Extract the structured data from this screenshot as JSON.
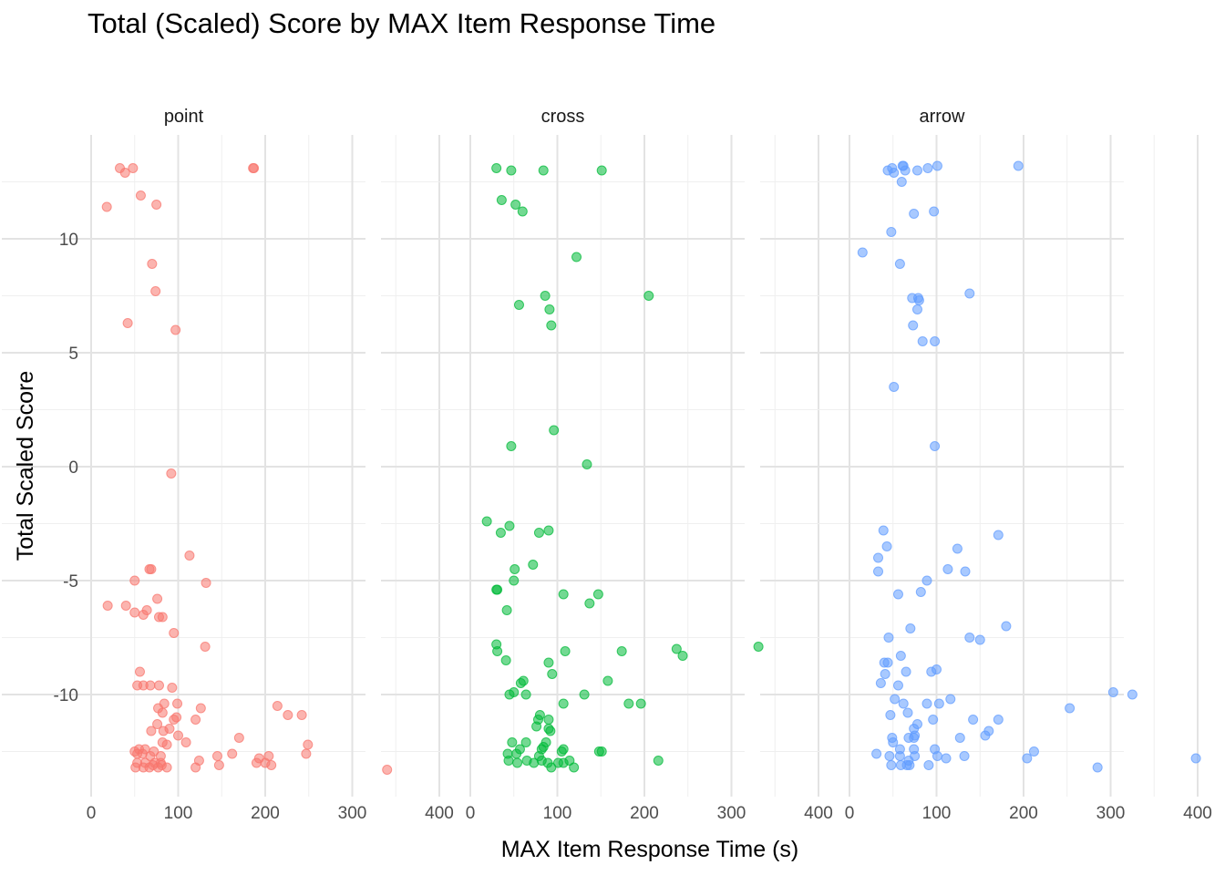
{
  "chart_data": {
    "type": "scatter",
    "title": "Total (Scaled) Score by MAX Item Response Time",
    "xlabel": "MAX Item Response Time (s)",
    "ylabel": "Total Scaled Score",
    "xlim": [
      0,
      400
    ],
    "ylim": [
      -14.5,
      14.5
    ],
    "x_ticks": [
      0,
      100,
      200,
      300,
      400
    ],
    "y_ticks": [
      -10,
      -5,
      0,
      5,
      10
    ],
    "grid": true,
    "legend": "none",
    "point_alpha": 0.55,
    "panels": [
      {
        "name": "point",
        "color": "#F8766D",
        "points": [
          [
            33,
            13.1
          ],
          [
            48,
            13.1
          ],
          [
            39,
            12.9
          ],
          [
            186,
            13.1
          ],
          [
            187,
            13.1
          ],
          [
            57,
            11.9
          ],
          [
            18,
            11.4
          ],
          [
            75,
            11.5
          ],
          [
            70,
            8.9
          ],
          [
            74,
            7.7
          ],
          [
            42,
            6.3
          ],
          [
            97,
            6.0
          ],
          [
            92,
            -0.3
          ],
          [
            113,
            -3.9
          ],
          [
            67,
            -4.5
          ],
          [
            69,
            -4.5
          ],
          [
            50,
            -5.0
          ],
          [
            132,
            -5.1
          ],
          [
            19,
            -6.1
          ],
          [
            40,
            -6.1
          ],
          [
            76,
            -5.8
          ],
          [
            50,
            -6.4
          ],
          [
            60,
            -6.5
          ],
          [
            64,
            -6.3
          ],
          [
            78,
            -6.6
          ],
          [
            82,
            -6.6
          ],
          [
            95,
            -7.3
          ],
          [
            131,
            -7.9
          ],
          [
            56,
            -9.0
          ],
          [
            53,
            -9.6
          ],
          [
            60,
            -9.6
          ],
          [
            68,
            -9.6
          ],
          [
            78,
            -9.6
          ],
          [
            93,
            -9.7
          ],
          [
            99,
            -10.4
          ],
          [
            84,
            -10.4
          ],
          [
            77,
            -10.6
          ],
          [
            126,
            -10.6
          ],
          [
            214,
            -10.5
          ],
          [
            242,
            -10.9
          ],
          [
            226,
            -10.9
          ],
          [
            82,
            -10.8
          ],
          [
            98,
            -11.0
          ],
          [
            95,
            -11.1
          ],
          [
            120,
            -11.1
          ],
          [
            76,
            -11.3
          ],
          [
            90,
            -11.5
          ],
          [
            69,
            -11.6
          ],
          [
            83,
            -11.6
          ],
          [
            100,
            -11.8
          ],
          [
            170,
            -11.9
          ],
          [
            109,
            -12.1
          ],
          [
            82,
            -12.1
          ],
          [
            87,
            -12.2
          ],
          [
            249,
            -12.2
          ],
          [
            50,
            -12.5
          ],
          [
            55,
            -12.4
          ],
          [
            62,
            -12.4
          ],
          [
            72,
            -12.5
          ],
          [
            53,
            -12.6
          ],
          [
            59,
            -12.6
          ],
          [
            80,
            -12.7
          ],
          [
            68,
            -12.7
          ],
          [
            162,
            -12.6
          ],
          [
            247,
            -12.6
          ],
          [
            145,
            -12.7
          ],
          [
            193,
            -12.8
          ],
          [
            204,
            -12.7
          ],
          [
            124,
            -12.9
          ],
          [
            190,
            -13.0
          ],
          [
            53,
            -13.0
          ],
          [
            62,
            -13.0
          ],
          [
            73,
            -13.0
          ],
          [
            80,
            -13.0
          ],
          [
            71,
            -13.1
          ],
          [
            81,
            -13.1
          ],
          [
            200,
            -13.0
          ],
          [
            87,
            -13.2
          ],
          [
            51,
            -13.2
          ],
          [
            60,
            -13.2
          ],
          [
            67,
            -13.2
          ],
          [
            77,
            -13.2
          ],
          [
            120,
            -13.2
          ],
          [
            147,
            -13.1
          ],
          [
            207,
            -13.1
          ],
          [
            340,
            -13.3
          ]
        ]
      },
      {
        "name": "cross",
        "color": "#00BA38",
        "points": [
          [
            30,
            13.1
          ],
          [
            47,
            13.0
          ],
          [
            84,
            13.0
          ],
          [
            151,
            13.0
          ],
          [
            36,
            11.7
          ],
          [
            52,
            11.5
          ],
          [
            60,
            11.2
          ],
          [
            122,
            9.2
          ],
          [
            86,
            7.5
          ],
          [
            205,
            7.5
          ],
          [
            56,
            7.1
          ],
          [
            91,
            6.9
          ],
          [
            93,
            6.2
          ],
          [
            96,
            1.6
          ],
          [
            47,
            0.9
          ],
          [
            134,
            0.1
          ],
          [
            19,
            -2.4
          ],
          [
            45,
            -2.6
          ],
          [
            90,
            -2.8
          ],
          [
            79,
            -2.9
          ],
          [
            35,
            -2.9
          ],
          [
            72,
            -4.3
          ],
          [
            51,
            -4.5
          ],
          [
            50,
            -5.0
          ],
          [
            30,
            -5.4
          ],
          [
            31,
            -5.4
          ],
          [
            107,
            -5.6
          ],
          [
            147,
            -5.6
          ],
          [
            137,
            -6.0
          ],
          [
            42,
            -6.3
          ],
          [
            30,
            -7.8
          ],
          [
            31,
            -8.1
          ],
          [
            109,
            -8.1
          ],
          [
            174,
            -8.1
          ],
          [
            237,
            -8.0
          ],
          [
            244,
            -8.3
          ],
          [
            331,
            -7.9
          ],
          [
            41,
            -8.5
          ],
          [
            90,
            -8.6
          ],
          [
            94,
            -9.1
          ],
          [
            158,
            -9.4
          ],
          [
            58,
            -9.5
          ],
          [
            61,
            -9.4
          ],
          [
            50,
            -9.9
          ],
          [
            45,
            -10.0
          ],
          [
            64,
            -10.0
          ],
          [
            131,
            -10.0
          ],
          [
            107,
            -10.4
          ],
          [
            182,
            -10.4
          ],
          [
            196,
            -10.4
          ],
          [
            80,
            -10.9
          ],
          [
            78,
            -11.1
          ],
          [
            90,
            -11.1
          ],
          [
            76,
            -11.4
          ],
          [
            90,
            -11.5
          ],
          [
            92,
            -11.6
          ],
          [
            48,
            -12.1
          ],
          [
            64,
            -12.1
          ],
          [
            87,
            -12.1
          ],
          [
            84,
            -12.3
          ],
          [
            107,
            -12.4
          ],
          [
            105,
            -12.5
          ],
          [
            148,
            -12.5
          ],
          [
            151,
            -12.5
          ],
          [
            57,
            -12.4
          ],
          [
            82,
            -12.4
          ],
          [
            53,
            -12.6
          ],
          [
            43,
            -12.6
          ],
          [
            79,
            -12.7
          ],
          [
            82,
            -12.9
          ],
          [
            44,
            -12.9
          ],
          [
            65,
            -12.9
          ],
          [
            54,
            -13.0
          ],
          [
            73,
            -13.0
          ],
          [
            101,
            -13.0
          ],
          [
            89,
            -13.0
          ],
          [
            216,
            -12.9
          ],
          [
            114,
            -12.9
          ],
          [
            93,
            -13.2
          ],
          [
            107,
            -13.0
          ],
          [
            119,
            -13.2
          ]
        ]
      },
      {
        "name": "arrow",
        "color": "#619CFF",
        "points": [
          [
            62,
            13.2
          ],
          [
            61,
            13.2
          ],
          [
            101,
            13.2
          ],
          [
            194,
            13.2
          ],
          [
            49,
            13.1
          ],
          [
            90,
            13.1
          ],
          [
            44,
            13.0
          ],
          [
            64,
            13.0
          ],
          [
            78,
            13.0
          ],
          [
            51,
            12.9
          ],
          [
            60,
            12.5
          ],
          [
            74,
            11.1
          ],
          [
            97,
            11.2
          ],
          [
            48,
            10.3
          ],
          [
            15,
            9.4
          ],
          [
            58,
            8.9
          ],
          [
            138,
            7.6
          ],
          [
            79,
            7.4
          ],
          [
            72,
            7.4
          ],
          [
            80,
            7.3
          ],
          [
            78,
            6.9
          ],
          [
            73,
            6.2
          ],
          [
            84,
            5.5
          ],
          [
            98,
            5.5
          ],
          [
            51,
            3.5
          ],
          [
            98,
            0.9
          ],
          [
            171,
            -3.0
          ],
          [
            39,
            -2.8
          ],
          [
            43,
            -3.5
          ],
          [
            124,
            -3.6
          ],
          [
            33,
            -4.0
          ],
          [
            33,
            -4.6
          ],
          [
            113,
            -4.5
          ],
          [
            133,
            -4.6
          ],
          [
            89,
            -5.0
          ],
          [
            82,
            -5.5
          ],
          [
            56,
            -5.6
          ],
          [
            180,
            -7.0
          ],
          [
            70,
            -7.1
          ],
          [
            45,
            -7.5
          ],
          [
            138,
            -7.5
          ],
          [
            150,
            -7.6
          ],
          [
            59,
            -8.3
          ],
          [
            40,
            -8.6
          ],
          [
            44,
            -8.6
          ],
          [
            41,
            -9.1
          ],
          [
            65,
            -9.0
          ],
          [
            94,
            -9.0
          ],
          [
            100,
            -8.9
          ],
          [
            56,
            -9.6
          ],
          [
            36,
            -9.5
          ],
          [
            52,
            -10.2
          ],
          [
            116,
            -10.2
          ],
          [
            103,
            -10.4
          ],
          [
            62,
            -10.4
          ],
          [
            89,
            -10.4
          ],
          [
            303,
            -9.9
          ],
          [
            325,
            -10.0
          ],
          [
            253,
            -10.6
          ],
          [
            67,
            -10.8
          ],
          [
            47,
            -10.9
          ],
          [
            142,
            -11.1
          ],
          [
            171,
            -11.1
          ],
          [
            96,
            -11.1
          ],
          [
            78,
            -11.3
          ],
          [
            74,
            -11.5
          ],
          [
            160,
            -11.6
          ],
          [
            75,
            -11.8
          ],
          [
            49,
            -11.9
          ],
          [
            127,
            -11.9
          ],
          [
            74,
            -11.9
          ],
          [
            68,
            -11.9
          ],
          [
            156,
            -11.8
          ],
          [
            50,
            -12.1
          ],
          [
            58,
            -12.4
          ],
          [
            74,
            -12.4
          ],
          [
            98,
            -12.4
          ],
          [
            31,
            -12.6
          ],
          [
            46,
            -12.7
          ],
          [
            58,
            -12.7
          ],
          [
            75,
            -12.7
          ],
          [
            101,
            -12.7
          ],
          [
            132,
            -12.7
          ],
          [
            212,
            -12.5
          ],
          [
            111,
            -12.8
          ],
          [
            204,
            -12.8
          ],
          [
            398,
            -12.8
          ],
          [
            68,
            -12.9
          ],
          [
            59,
            -13.1
          ],
          [
            66,
            -13.1
          ],
          [
            48,
            -13.1
          ],
          [
            69,
            -13.1
          ],
          [
            91,
            -13.1
          ],
          [
            285,
            -13.2
          ]
        ]
      }
    ]
  }
}
